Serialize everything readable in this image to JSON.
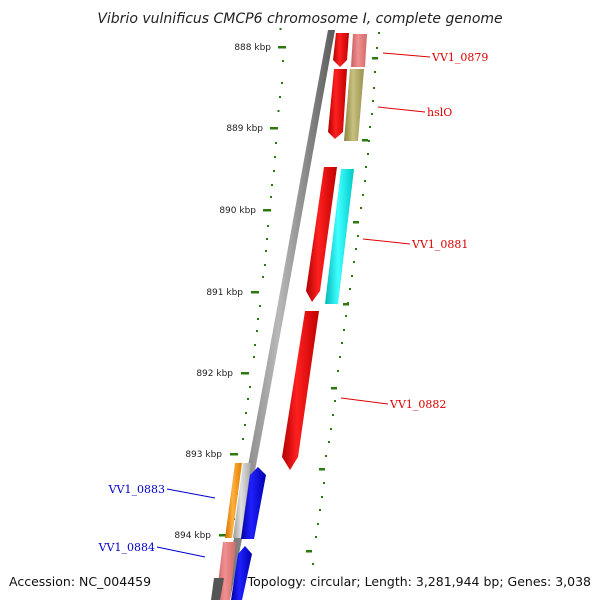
{
  "title": "Vibrio vulnificus CMCP6 chromosome I, complete genome",
  "footer": {
    "accession": "Accession: NC_004459",
    "topology": "Topology: circular; Length: 3,281,944 bp; Genes: 3,038"
  },
  "ticks": [
    {
      "label": "888 kbp"
    },
    {
      "label": "889 kbp"
    },
    {
      "label": "890 kbp"
    },
    {
      "label": "891 kbp"
    },
    {
      "label": "892 kbp"
    },
    {
      "label": "893 kbp"
    },
    {
      "label": "894 kbp"
    }
  ],
  "genes": [
    {
      "label": "VV1_0879",
      "color": "#dd0000"
    },
    {
      "label": "hslO",
      "color": "#dd0000"
    },
    {
      "label": "VV1_0881",
      "color": "#dd0000"
    },
    {
      "label": "VV1_0882",
      "color": "#dd0000"
    },
    {
      "label": "VV1_0883",
      "color": "#0000cc"
    },
    {
      "label": "VV1_0884",
      "color": "#0000cc"
    }
  ],
  "colors": {
    "backbone": "#8c8c8c",
    "tick": "#2a7a10",
    "cds_red": "#ee0000",
    "cds_blue": "#0000ee",
    "pink": "#e87a7a",
    "olive": "#b0a860",
    "cyan": "#00e5e5",
    "orange": "#ff9000",
    "grey_gene": "#bdbdbd",
    "dark_grey": "#555555"
  }
}
